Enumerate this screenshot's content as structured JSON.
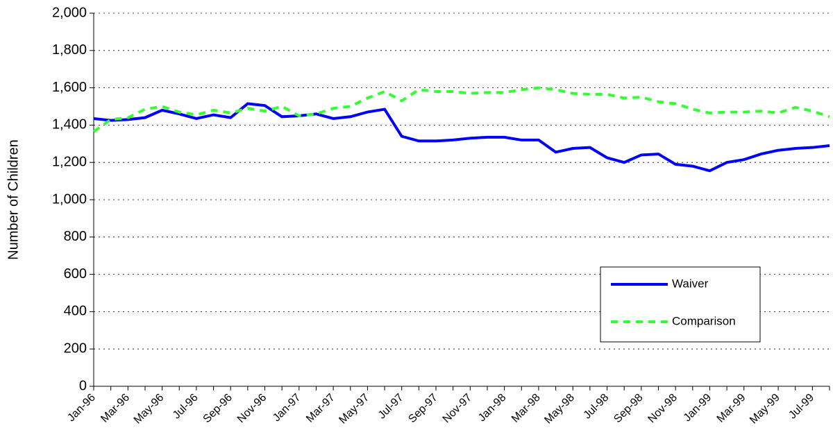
{
  "chart_data": {
    "type": "line",
    "y_label": "Number of Children",
    "categories": [
      "Jan-96",
      null,
      "Mar-96",
      null,
      "May-96",
      null,
      "Jul-96",
      null,
      "Sep-96",
      null,
      "Nov-96",
      null,
      "Jan-97",
      null,
      "Mar-97",
      null,
      "May-97",
      null,
      "Jul-97",
      null,
      "Sep-97",
      null,
      "Nov-97",
      null,
      "Jan-98",
      null,
      "Mar-98",
      null,
      "May-98",
      null,
      "Jul-98",
      null,
      "Sep-98",
      null,
      "Nov-98",
      null,
      "Jan-99",
      null,
      "Mar-99",
      null,
      "May-99",
      null,
      "Jul-99",
      null
    ],
    "series": [
      {
        "name": "Waiver",
        "color": "#0000ff",
        "dash": false,
        "values": [
          1435,
          1425,
          1430,
          1440,
          1480,
          1460,
          1435,
          1455,
          1440,
          1515,
          1505,
          1445,
          1450,
          1460,
          1435,
          1445,
          1470,
          1485,
          1340,
          1315,
          1315,
          1320,
          1330,
          1335,
          1335,
          1320,
          1320,
          1255,
          1275,
          1280,
          1225,
          1200,
          1240,
          1245,
          1190,
          1180,
          1155,
          1200,
          1215,
          1245,
          1265,
          1275,
          1280,
          1290
        ]
      },
      {
        "name": "Comparison",
        "color": "#33ff33",
        "dash": true,
        "values": [
          1365,
          1430,
          1440,
          1485,
          1500,
          1470,
          1455,
          1480,
          1465,
          1490,
          1475,
          1500,
          1450,
          1460,
          1490,
          1500,
          1545,
          1580,
          1530,
          1590,
          1580,
          1580,
          1570,
          1575,
          1575,
          1590,
          1600,
          1590,
          1570,
          1565,
          1565,
          1545,
          1550,
          1525,
          1515,
          1485,
          1465,
          1470,
          1470,
          1475,
          1465,
          1495,
          1475,
          1445
        ]
      }
    ],
    "ylim": [
      0,
      2000
    ],
    "yticks": [
      0,
      200,
      400,
      600,
      800,
      {
        "value": 1000,
        "label": "1,000"
      },
      {
        "value": 1200,
        "label": "1,200"
      },
      {
        "value": 1400,
        "label": "1,400"
      },
      {
        "value": 1600,
        "label": "1,600"
      },
      {
        "value": 1800,
        "label": "1,800"
      },
      {
        "value": 2000,
        "label": "2,000"
      }
    ],
    "grid": true
  }
}
